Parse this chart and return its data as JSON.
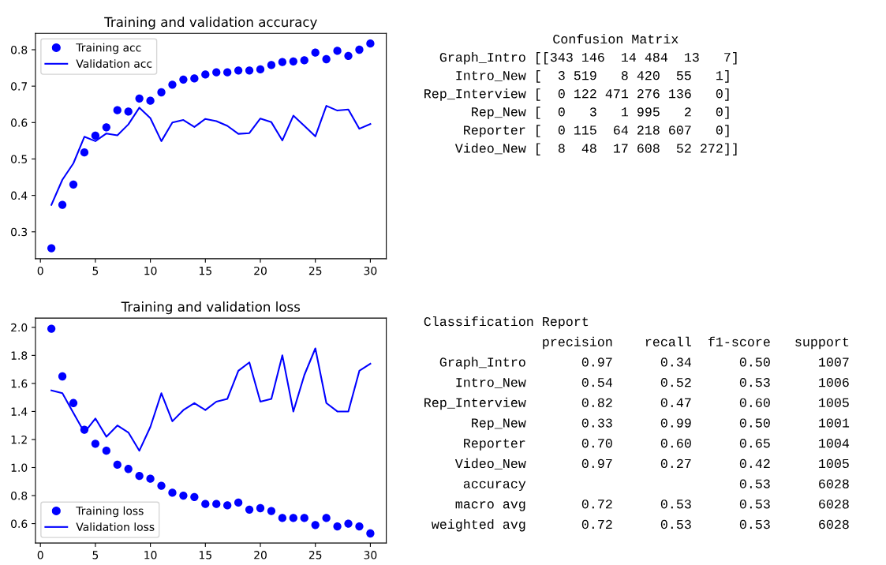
{
  "chart_data": [
    {
      "type": "line",
      "title": "Training and validation accuracy",
      "x": [
        1,
        2,
        3,
        4,
        5,
        6,
        7,
        8,
        9,
        10,
        11,
        12,
        13,
        14,
        15,
        16,
        17,
        18,
        19,
        20,
        21,
        22,
        23,
        24,
        25,
        26,
        27,
        28,
        29,
        30
      ],
      "series": [
        {
          "name": "Training acc",
          "type": "scatter",
          "marker": "circle",
          "color": "#0000ff",
          "values": [
            0.255,
            0.374,
            0.43,
            0.518,
            0.564,
            0.587,
            0.634,
            0.63,
            0.666,
            0.66,
            0.683,
            0.704,
            0.718,
            0.721,
            0.732,
            0.738,
            0.738,
            0.743,
            0.743,
            0.746,
            0.758,
            0.766,
            0.768,
            0.771,
            0.792,
            0.774,
            0.797,
            0.783,
            0.8,
            0.817
          ]
        },
        {
          "name": "Validation acc",
          "type": "line",
          "line_style": "solid",
          "color": "#0000ff",
          "values": [
            0.374,
            0.443,
            0.488,
            0.561,
            0.549,
            0.57,
            0.565,
            0.595,
            0.641,
            0.612,
            0.549,
            0.6,
            0.607,
            0.588,
            0.61,
            0.604,
            0.591,
            0.569,
            0.571,
            0.611,
            0.601,
            0.551,
            0.619,
            0.591,
            0.562,
            0.646,
            0.633,
            0.636,
            0.583,
            0.596
          ]
        }
      ],
      "xlim": [
        -0.45,
        31.45
      ],
      "xticks": [
        0,
        5,
        10,
        15,
        20,
        25,
        30
      ],
      "ylim": [
        0.226,
        0.845
      ],
      "yticks": [
        0.3,
        0.4,
        0.5,
        0.6,
        0.7,
        0.8
      ],
      "legend": "top left"
    },
    {
      "type": "line",
      "title": "Training and validation loss",
      "x": [
        1,
        2,
        3,
        4,
        5,
        6,
        7,
        8,
        9,
        10,
        11,
        12,
        13,
        14,
        15,
        16,
        17,
        18,
        19,
        20,
        21,
        22,
        23,
        24,
        25,
        26,
        27,
        28,
        29,
        30
      ],
      "series": [
        {
          "name": "Training loss",
          "type": "scatter",
          "marker": "circle",
          "color": "#0000ff",
          "values": [
            1.99,
            1.65,
            1.46,
            1.27,
            1.17,
            1.12,
            1.02,
            0.99,
            0.94,
            0.92,
            0.87,
            0.82,
            0.8,
            0.79,
            0.74,
            0.74,
            0.73,
            0.75,
            0.7,
            0.71,
            0.69,
            0.64,
            0.64,
            0.64,
            0.59,
            0.64,
            0.58,
            0.6,
            0.58,
            0.53
          ]
        },
        {
          "name": "Validation loss",
          "type": "line",
          "line_style": "solid",
          "color": "#0000ff",
          "values": [
            1.55,
            1.53,
            1.39,
            1.25,
            1.35,
            1.22,
            1.3,
            1.25,
            1.12,
            1.29,
            1.53,
            1.33,
            1.41,
            1.46,
            1.41,
            1.47,
            1.49,
            1.69,
            1.75,
            1.47,
            1.49,
            1.8,
            1.4,
            1.66,
            1.85,
            1.46,
            1.4,
            1.4,
            1.69,
            1.74
          ]
        }
      ],
      "xlim": [
        -0.45,
        31.45
      ],
      "xticks": [
        0,
        5,
        10,
        15,
        20,
        25,
        30
      ],
      "ylim": [
        0.462,
        2.066
      ],
      "yticks": [
        0.6,
        0.8,
        {
          "value": 1,
          "label": "1.0"
        },
        1.2,
        1.4,
        1.6,
        1.8,
        {
          "value": 2,
          "label": "2.0"
        }
      ],
      "legend": "bottom left"
    },
    {
      "type": "other",
      "title": "Confusion Matrix",
      "annotations": [
        "  Graph_Intro [[343 146  14 484  13   7]",
        "    Intro_New [  3 519   8 420  55   1]",
        "Rep_Interview [  0 122 471 276 136   0]",
        "      Rep_New [  0   3   1 995   2   0]",
        "     Reporter [  0 115  64 218 607   0]",
        "    Video_New [  8  48  17 608  52 272]]"
      ]
    },
    {
      "type": "other",
      "title": "Classification Report",
      "annotations": [
        "               precision    recall  f1-score   support",
        "  Graph_Intro       0.97      0.34      0.50      1007",
        "    Intro_New       0.54      0.52      0.53      1006",
        "Rep_Interview       0.82      0.47      0.60      1005",
        "      Rep_New       0.33      0.99      0.50      1001",
        "     Reporter       0.70      0.60      0.65      1004",
        "    Video_New       0.97      0.27      0.42      1005",
        "     accuracy                           0.53      6028",
        "    macro avg       0.72      0.53      0.53      6028",
        " weighted avg       0.72      0.53      0.53      6028"
      ]
    }
  ]
}
